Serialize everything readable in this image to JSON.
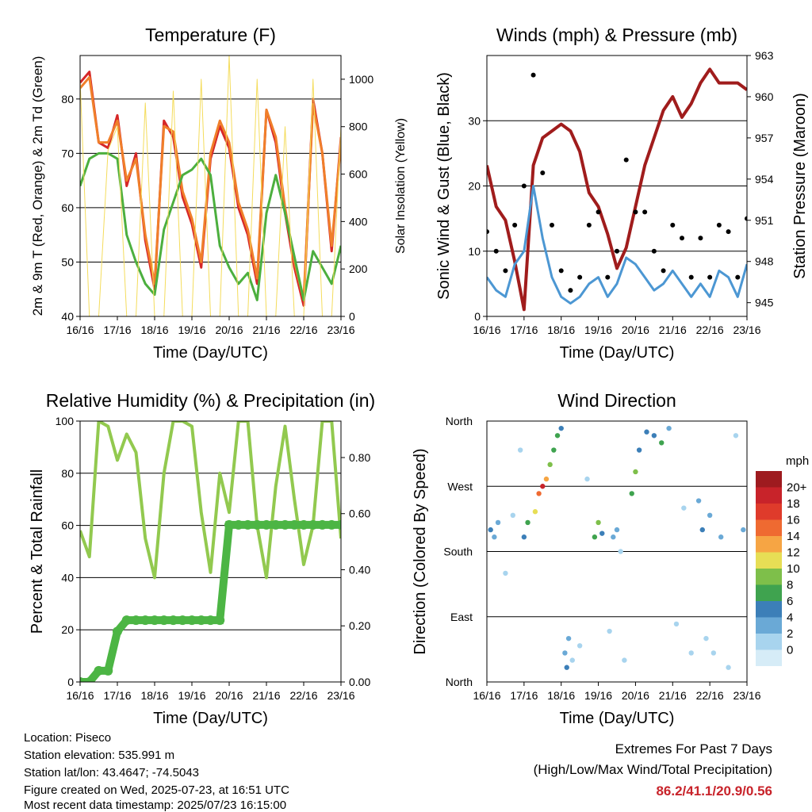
{
  "panels": {
    "temperature": {
      "title": "Temperature (F)",
      "xlabel": "Time (Day/UTC)",
      "ylabel_left": "2m & 9m T (Red, Orange) & 2m Td (Green)",
      "ylabel_right": "Solar Insolation (Yellow)"
    },
    "winds": {
      "title": "Winds (mph) & Pressure (mb)",
      "xlabel": "Time (Day/UTC)",
      "ylabel_left": "Sonic Wind & Gust (Blue, Black)",
      "ylabel_right": "Station Pressure (Maroon)"
    },
    "humidity": {
      "title": "Relative Humidity (%) & Precipitation (in)",
      "xlabel": "Time (Day/UTC)",
      "ylabel_left": "Percent & Total Rainfall"
    },
    "direction": {
      "title": "Wind Direction",
      "xlabel": "Time (Day/UTC)",
      "ylabel_left": "Direction (Colored By Speed)",
      "colorbar_title": "mph",
      "colorbar_labels": [
        "20+",
        "18",
        "16",
        "14",
        "12",
        "10",
        "8",
        "6",
        "4",
        "2",
        "0"
      ],
      "colorbar_colors": [
        "#9e1b1f",
        "#c8232a",
        "#df3b2b",
        "#ef6a31",
        "#f6a544",
        "#e7de55",
        "#7ebf4a",
        "#3fa34f",
        "#3c7fb8",
        "#6aa9d6",
        "#a8d4ee",
        "#d6ecf7"
      ]
    }
  },
  "info": {
    "location": "Location: Piseco",
    "elevation": "Station elevation: 535.991 m",
    "latlon": "Station lat/lon: 43.4647; -74.5043",
    "created": "Figure created on Wed, 2025-07-23, at 16:51 UTC",
    "recent": "Most recent data timestamp: 2025/07/23 16:15:00"
  },
  "extremes": {
    "title": "Extremes For Past 7 Days",
    "subtitle": "(High/Low/Max Wind/Total Precipitation)",
    "values": "86.2/41.1/20.9/0.56"
  },
  "chart_data": [
    {
      "type": "line",
      "title": "Temperature (F)",
      "xlabel": "Time (Day/UTC)",
      "ylabel": "2m & 9m T (Red, Orange) & 2m Td (Green)",
      "y2label": "Solar Insolation (Yellow)",
      "x_tick_labels": [
        "16/16",
        "17/16",
        "18/16",
        "19/16",
        "20/16",
        "21/16",
        "22/16",
        "23/16"
      ],
      "ylim": [
        40,
        88
      ],
      "y_ticks": [
        40,
        50,
        60,
        70,
        80
      ],
      "y2lim": [
        0,
        1100
      ],
      "y2_ticks": [
        0,
        200,
        400,
        600,
        800,
        1000
      ],
      "x": [
        0,
        0.25,
        0.5,
        0.75,
        1,
        1.25,
        1.5,
        1.75,
        2,
        2.25,
        2.5,
        2.75,
        3,
        3.25,
        3.5,
        3.75,
        4,
        4.25,
        4.5,
        4.75,
        5,
        5.25,
        5.5,
        5.75,
        6,
        6.25,
        6.5,
        6.75,
        7
      ],
      "series": [
        {
          "name": "2m T",
          "color": "#d62728",
          "values": [
            83,
            85,
            72,
            71,
            77,
            64,
            70,
            54,
            45,
            76,
            73,
            62,
            57,
            49,
            69,
            75,
            71,
            60,
            55,
            46,
            78,
            72,
            59,
            49,
            42,
            80,
            70,
            52,
            73
          ]
        },
        {
          "name": "9m T",
          "color": "#f07f2a",
          "values": [
            82,
            84,
            72,
            72,
            76,
            65,
            69,
            55,
            46,
            75,
            74,
            63,
            58,
            50,
            70,
            76,
            72,
            61,
            56,
            47,
            78,
            73,
            60,
            50,
            43,
            79,
            70,
            53,
            72
          ]
        },
        {
          "name": "2m Td",
          "color": "#4caf3e",
          "values": [
            64,
            69,
            70,
            70,
            69,
            55,
            50,
            46,
            44,
            56,
            61,
            66,
            67,
            69,
            66,
            53,
            49,
            46,
            48,
            43,
            59,
            66,
            59,
            51,
            43,
            52,
            49,
            46,
            53
          ]
        },
        {
          "name": "Solar Insolation",
          "color": "#f4dc5c",
          "axis": "y2",
          "values": [
            1000,
            0,
            0,
            700,
            800,
            0,
            0,
            900,
            0,
            0,
            950,
            0,
            0,
            1000,
            0,
            0,
            1100,
            0,
            0,
            1000,
            0,
            0,
            800,
            0,
            0,
            1000,
            0,
            0,
            800
          ]
        }
      ]
    },
    {
      "type": "line",
      "title": "Winds (mph) & Pressure (mb)",
      "xlabel": "Time (Day/UTC)",
      "ylabel": "Sonic Wind & Gust (Blue, Black)",
      "y2label": "Station Pressure (Maroon)",
      "x_tick_labels": [
        "16/16",
        "17/16",
        "18/16",
        "19/16",
        "20/16",
        "21/16",
        "22/16",
        "23/16"
      ],
      "ylim": [
        0,
        40
      ],
      "y_ticks": [
        0,
        10,
        20,
        30
      ],
      "y2lim": [
        944,
        963
      ],
      "y2_ticks": [
        945,
        948,
        951,
        954,
        957,
        960,
        963
      ],
      "x": [
        0,
        0.25,
        0.5,
        0.75,
        1,
        1.25,
        1.5,
        1.75,
        2,
        2.25,
        2.5,
        2.75,
        3,
        3.25,
        3.5,
        3.75,
        4,
        4.25,
        4.5,
        4.75,
        5,
        5.25,
        5.5,
        5.75,
        6,
        6.25,
        6.5,
        6.75,
        7
      ],
      "series": [
        {
          "name": "Station Pressure",
          "color": "#a01c1c",
          "axis": "y2",
          "values": [
            955,
            952,
            951,
            948,
            944.5,
            955,
            957,
            957.5,
            958,
            957.5,
            956,
            953,
            952,
            950,
            947.5,
            949,
            952,
            955,
            957,
            959,
            960,
            958.5,
            959.5,
            961,
            962,
            961,
            961,
            961,
            960.5
          ]
        },
        {
          "name": "Sonic Wind",
          "color": "#4c97d3",
          "values": [
            6,
            4,
            3,
            8,
            10,
            20,
            12,
            6,
            3,
            2,
            3,
            5,
            6,
            3,
            5,
            9,
            8,
            6,
            4,
            5,
            7,
            5,
            3,
            5,
            3,
            7,
            6,
            3,
            8
          ]
        },
        {
          "name": "Gust",
          "color": "#000000",
          "values": [
            13,
            10,
            7,
            14,
            20,
            37,
            22,
            14,
            7,
            4,
            6,
            14,
            16,
            6,
            10,
            24,
            16,
            16,
            10,
            7,
            14,
            12,
            6,
            12,
            6,
            14,
            13,
            6,
            15
          ]
        }
      ]
    },
    {
      "type": "line",
      "title": "Relative Humidity (%) & Precipitation (in)",
      "xlabel": "Time (Day/UTC)",
      "ylabel": "Percent & Total Rainfall",
      "x_tick_labels": [
        "16/16",
        "17/16",
        "18/16",
        "19/16",
        "20/16",
        "21/16",
        "22/16",
        "23/16"
      ],
      "ylim": [
        0,
        100
      ],
      "y_ticks": [
        0,
        20,
        40,
        60,
        80,
        100
      ],
      "y2lim": [
        0,
        0.93
      ],
      "y2_ticks": [
        0.0,
        0.2,
        0.4,
        0.6,
        0.8
      ],
      "y2_tick_labels": [
        "0.00",
        "0.20",
        "0.40",
        "0.60",
        "0.80"
      ],
      "x": [
        0,
        0.25,
        0.5,
        0.75,
        1,
        1.25,
        1.5,
        1.75,
        2,
        2.25,
        2.5,
        2.75,
        3,
        3.25,
        3.5,
        3.75,
        4,
        4.25,
        4.5,
        4.75,
        5,
        5.25,
        5.5,
        5.75,
        6,
        6.25,
        6.5,
        6.75,
        7
      ],
      "series": [
        {
          "name": "Relative Humidity",
          "color": "#92c94f",
          "values": [
            58,
            48,
            100,
            98,
            85,
            95,
            88,
            55,
            40,
            80,
            100,
            100,
            98,
            65,
            42,
            80,
            65,
            100,
            100,
            60,
            40,
            75,
            98,
            70,
            45,
            60,
            100,
            100,
            55
          ]
        },
        {
          "name": "Total Rainfall",
          "color": "#4cb544",
          "axis": "y2",
          "values": [
            0.0,
            0.0,
            0.04,
            0.04,
            0.18,
            0.22,
            0.22,
            0.22,
            0.22,
            0.22,
            0.22,
            0.22,
            0.22,
            0.22,
            0.22,
            0.22,
            0.56,
            0.56,
            0.56,
            0.56,
            0.56,
            0.56,
            0.56,
            0.56,
            0.56,
            0.56,
            0.56,
            0.56,
            0.56
          ]
        }
      ]
    },
    {
      "type": "scatter",
      "title": "Wind Direction",
      "xlabel": "Time (Day/UTC)",
      "ylabel": "Direction (Colored By Speed)",
      "x_tick_labels": [
        "16/16",
        "17/16",
        "18/16",
        "19/16",
        "20/16",
        "21/16",
        "22/16",
        "23/16"
      ],
      "y_categories": [
        "North",
        "East",
        "South",
        "West",
        "North"
      ],
      "ylim": [
        0,
        360
      ],
      "colorbar_title": "mph",
      "points": [
        [
          0.1,
          210,
          6
        ],
        [
          0.2,
          200,
          5
        ],
        [
          0.3,
          220,
          4
        ],
        [
          0.5,
          150,
          2
        ],
        [
          0.7,
          230,
          3
        ],
        [
          0.9,
          320,
          2
        ],
        [
          1.0,
          200,
          7
        ],
        [
          1.1,
          220,
          9
        ],
        [
          1.3,
          235,
          12
        ],
        [
          1.4,
          260,
          16
        ],
        [
          1.5,
          270,
          20
        ],
        [
          1.6,
          280,
          14
        ],
        [
          1.7,
          300,
          10
        ],
        [
          1.8,
          320,
          8
        ],
        [
          1.9,
          340,
          9
        ],
        [
          2.0,
          350,
          6
        ],
        [
          2.1,
          40,
          5
        ],
        [
          2.15,
          20,
          6
        ],
        [
          2.2,
          60,
          4
        ],
        [
          2.3,
          30,
          3
        ],
        [
          2.5,
          50,
          2
        ],
        [
          2.7,
          280,
          2
        ],
        [
          2.9,
          200,
          9
        ],
        [
          3.0,
          220,
          11
        ],
        [
          3.1,
          205,
          6
        ],
        [
          3.3,
          70,
          3
        ],
        [
          3.4,
          200,
          4
        ],
        [
          3.5,
          210,
          5
        ],
        [
          3.6,
          180,
          3
        ],
        [
          3.7,
          30,
          2
        ],
        [
          3.9,
          260,
          8
        ],
        [
          4.0,
          290,
          11
        ],
        [
          4.1,
          320,
          6
        ],
        [
          4.3,
          345,
          7
        ],
        [
          4.5,
          340,
          6
        ],
        [
          4.7,
          330,
          8
        ],
        [
          4.9,
          350,
          4
        ],
        [
          5.1,
          80,
          2
        ],
        [
          5.3,
          240,
          3
        ],
        [
          5.5,
          40,
          2
        ],
        [
          5.7,
          250,
          4
        ],
        [
          5.8,
          210,
          6
        ],
        [
          5.9,
          60,
          3
        ],
        [
          6.0,
          230,
          5
        ],
        [
          6.1,
          40,
          2
        ],
        [
          6.3,
          200,
          4
        ],
        [
          6.5,
          20,
          2
        ],
        [
          6.7,
          340,
          3
        ],
        [
          6.9,
          210,
          5
        ]
      ]
    }
  ]
}
